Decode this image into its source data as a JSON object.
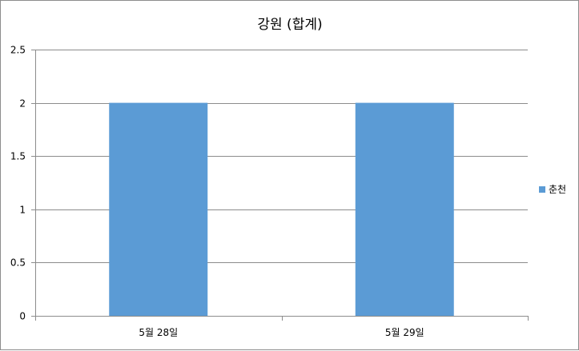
{
  "chart_data": {
    "type": "bar",
    "title": "강원 (합계)",
    "xlabel": "",
    "ylabel": "",
    "categories": [
      "5월 28일",
      "5월 29일"
    ],
    "series": [
      {
        "name": "춘천",
        "values": [
          2,
          2
        ],
        "color": "#5b9bd5"
      }
    ],
    "ylim": [
      0,
      2.5
    ],
    "yticks": [
      "0",
      "0.5",
      "1",
      "1.5",
      "2",
      "2.5"
    ],
    "grid": true,
    "legend_position": "right"
  }
}
